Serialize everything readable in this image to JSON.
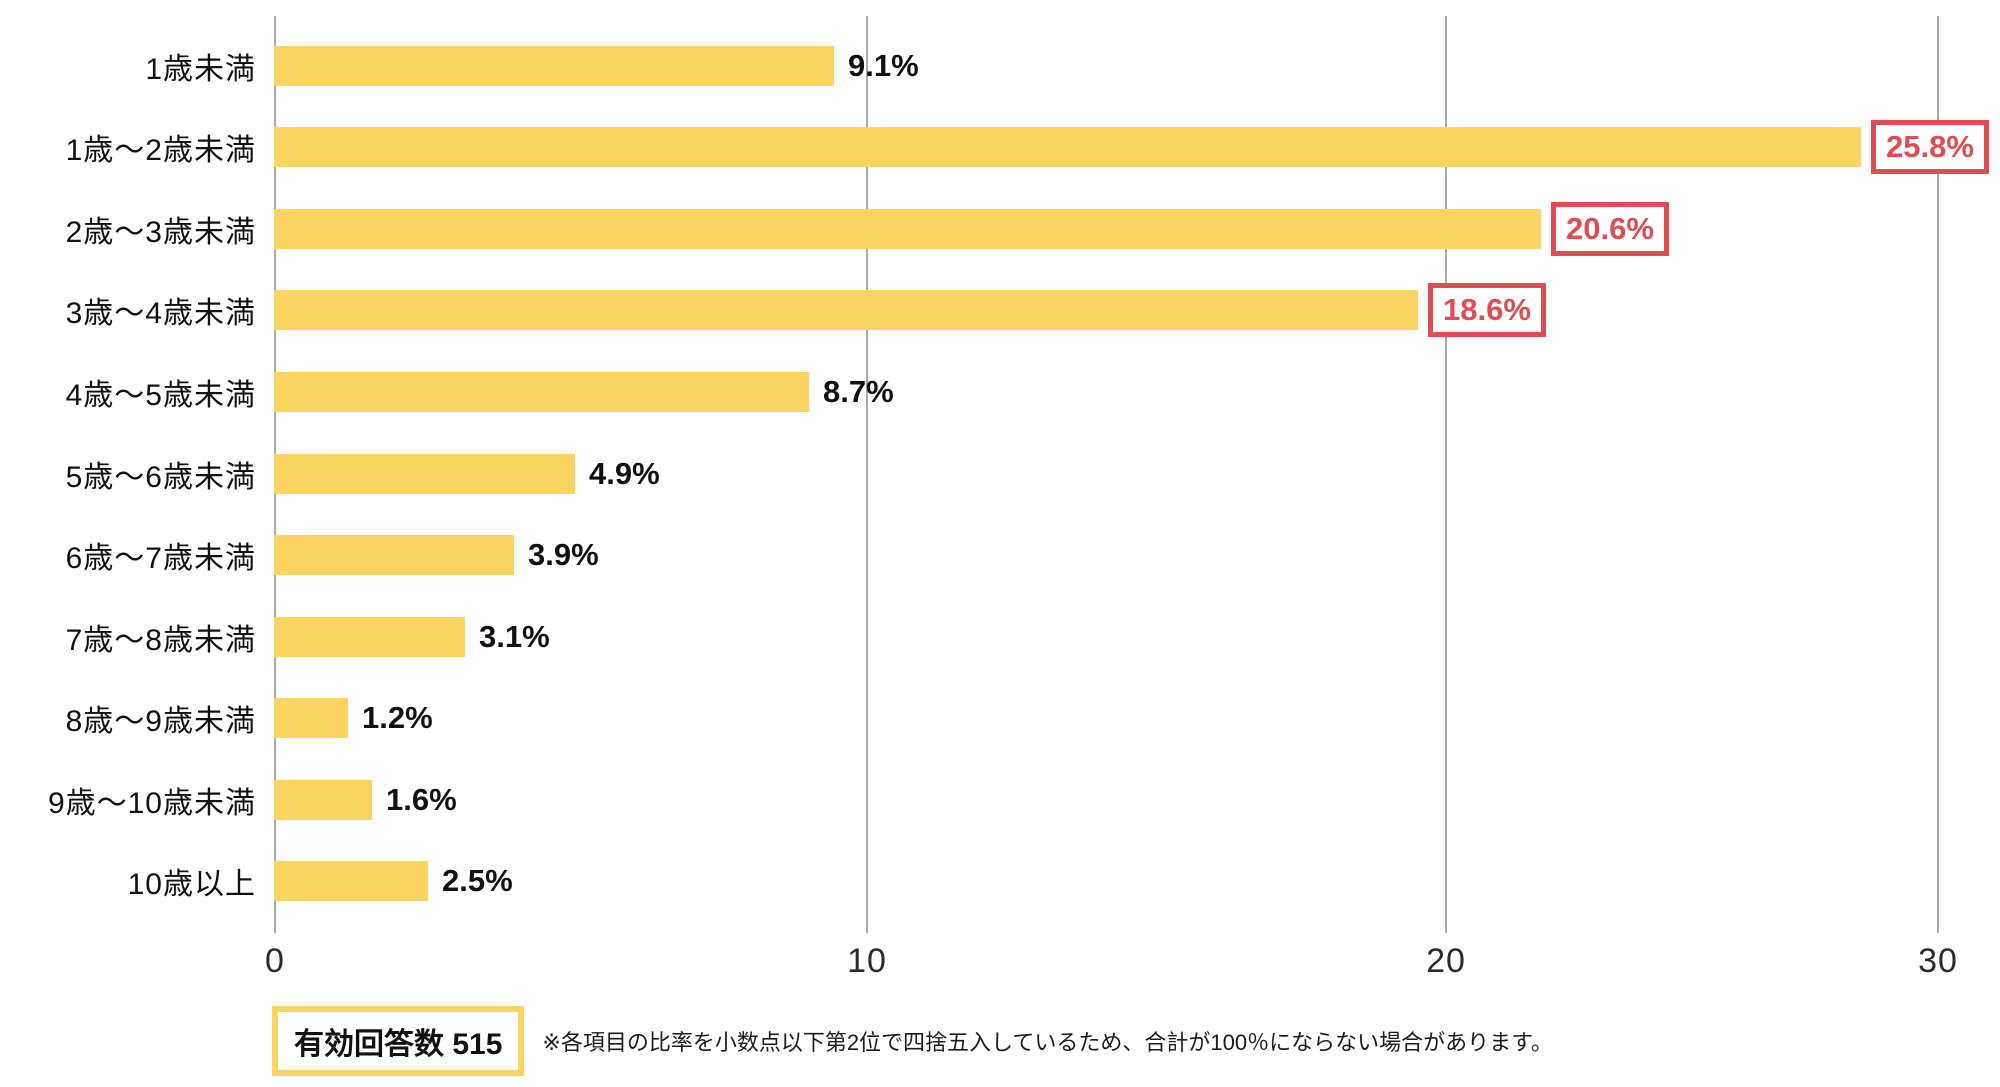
{
  "colors": {
    "bar_yellow": "#FCD462",
    "highlight_red": "#E04C51",
    "gridline_gray": "#A9A9A9",
    "text_black": "#111111"
  },
  "chart_data": {
    "type": "bar",
    "orientation": "horizontal",
    "title": "",
    "xlabel": "",
    "ylabel": "",
    "categories": [
      "1歳未満",
      "1歳〜2歳未満",
      "2歳〜3歳未満",
      "3歳〜4歳未満",
      "4歳〜5歳未満",
      "5歳〜6歳未満",
      "6歳〜7歳未満",
      "7歳〜8歳未満",
      "8歳〜9歳未満",
      "9歳〜10歳未満",
      "10歳以上"
    ],
    "values": [
      9.1,
      25.8,
      20.6,
      18.6,
      8.7,
      4.9,
      3.9,
      3.1,
      1.2,
      1.6,
      2.5
    ],
    "value_labels": [
      "9.1%",
      "25.8%",
      "20.6%",
      "18.6%",
      "8.7%",
      "4.9%",
      "3.9%",
      "3.1%",
      "1.2%",
      "1.6%",
      "2.5%"
    ],
    "highlighted": [
      false,
      true,
      true,
      true,
      false,
      false,
      false,
      false,
      false,
      false,
      false
    ],
    "x_ticks": [
      "0",
      "10",
      "20",
      "30"
    ],
    "x_tick_values": [
      0,
      10,
      20,
      30
    ],
    "xlim": [
      0,
      31
    ],
    "grid": true,
    "legend": "none"
  },
  "footer": {
    "valid_label": "有効回答数 515",
    "note": "※各項目の比率を小数点以下第2位で四捨五入しているため、合計が100％にならない場合があります。"
  }
}
